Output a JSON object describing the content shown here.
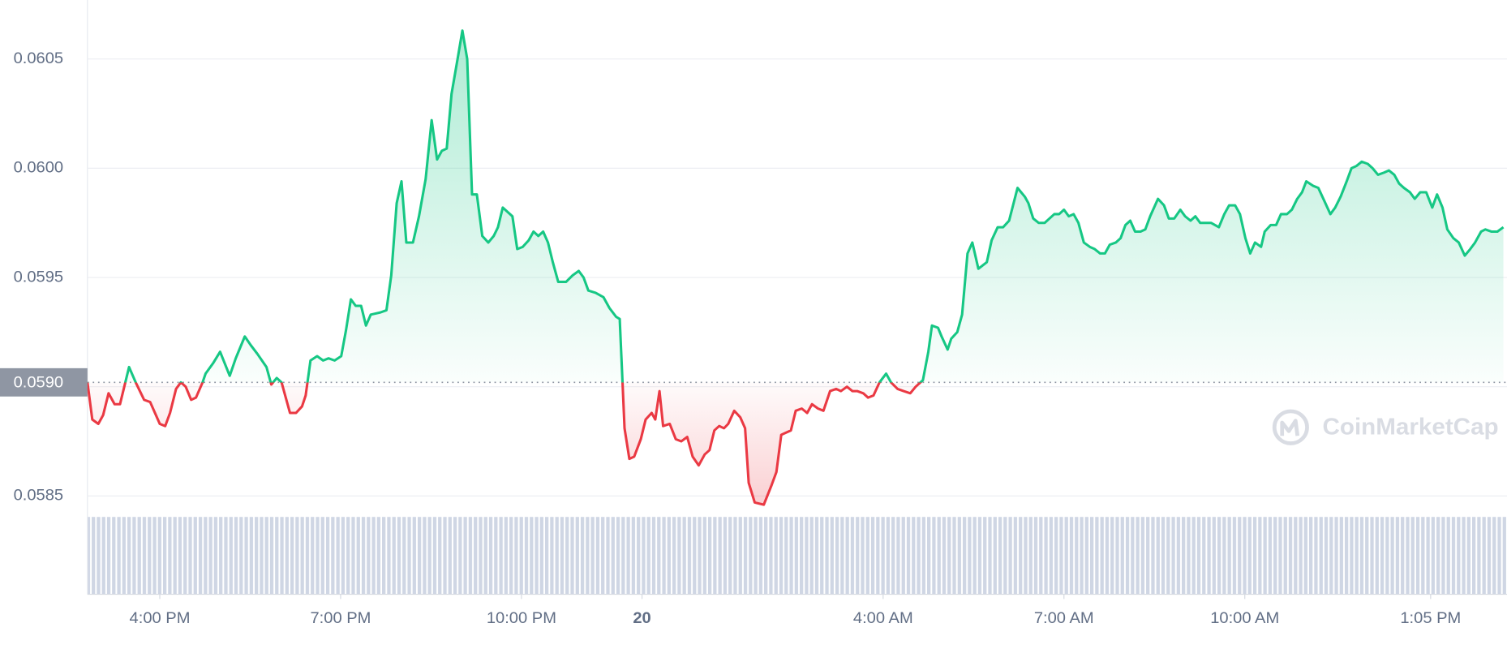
{
  "chart_data": {
    "type": "line",
    "watermark": "CoinMarketCap",
    "reference": {
      "value": 0.05902,
      "label": "0.0590"
    },
    "colors": {
      "up": "#16c784",
      "down": "#ea3943"
    },
    "grid": true,
    "xlim": [
      14.8,
      38.35
    ],
    "ylim": [
      0.05805,
      0.06077
    ],
    "xticks": [
      {
        "value": 16,
        "label": "4:00 PM"
      },
      {
        "value": 19,
        "label": "7:00 PM"
      },
      {
        "value": 22,
        "label": "10:00 PM"
      },
      {
        "value": 24,
        "label": "20"
      },
      {
        "value": 28,
        "label": "4:00 AM"
      },
      {
        "value": 31,
        "label": "7:00 AM"
      },
      {
        "value": 34,
        "label": "10:00 AM"
      },
      {
        "value": 37.083,
        "label": "1:05 PM"
      }
    ],
    "yticks": [
      0.0585,
      {
        "value": 0.059,
        "label": "0.0590"
      },
      0.0595,
      {
        "value": 0.06,
        "label": "0.0600"
      },
      0.0605
    ],
    "x": [
      14.8,
      14.88,
      14.98,
      15.06,
      15.15,
      15.25,
      15.34,
      15.49,
      15.6,
      15.74,
      15.84,
      16.0,
      16.09,
      16.17,
      16.27,
      16.35,
      16.43,
      16.52,
      16.6,
      16.71,
      16.76,
      16.89,
      17.0,
      17.16,
      17.26,
      17.41,
      17.51,
      17.62,
      17.77,
      17.85,
      17.94,
      18.02,
      18.16,
      18.26,
      18.36,
      18.42,
      18.5,
      18.61,
      18.71,
      18.8,
      18.9,
      19.01,
      19.09,
      19.17,
      19.25,
      19.34,
      19.42,
      19.5,
      19.66,
      19.76,
      19.84,
      19.93,
      20.01,
      20.09,
      20.2,
      20.3,
      20.41,
      20.51,
      20.6,
      20.68,
      20.76,
      20.84,
      20.94,
      21.02,
      21.1,
      21.18,
      21.26,
      21.35,
      21.45,
      21.54,
      21.61,
      21.69,
      21.77,
      21.85,
      21.93,
      22.02,
      22.12,
      22.2,
      22.28,
      22.36,
      22.44,
      22.52,
      22.61,
      22.74,
      22.85,
      22.95,
      23.03,
      23.11,
      23.23,
      23.36,
      23.46,
      23.57,
      23.63,
      23.68,
      23.71,
      23.79,
      23.87,
      23.98,
      24.06,
      24.16,
      24.22,
      24.29,
      24.35,
      24.46,
      24.56,
      24.65,
      24.75,
      24.84,
      24.94,
      25.04,
      25.12,
      25.2,
      25.28,
      25.36,
      25.43,
      25.53,
      25.63,
      25.71,
      25.77,
      25.87,
      26.02,
      26.15,
      26.23,
      26.31,
      26.39,
      26.47,
      26.55,
      26.65,
      26.74,
      26.82,
      26.92,
      27.01,
      27.12,
      27.22,
      27.3,
      27.4,
      27.49,
      27.57,
      27.67,
      27.75,
      27.84,
      27.94,
      28.05,
      28.13,
      28.24,
      28.34,
      28.45,
      28.54,
      28.66,
      28.75,
      28.81,
      28.91,
      28.97,
      29.07,
      29.13,
      29.23,
      29.31,
      29.4,
      29.48,
      29.58,
      29.72,
      29.8,
      29.9,
      29.99,
      30.09,
      30.23,
      30.35,
      30.41,
      30.49,
      30.58,
      30.68,
      30.76,
      30.84,
      30.92,
      31.0,
      31.08,
      31.16,
      31.24,
      31.33,
      31.43,
      31.51,
      31.6,
      31.68,
      31.76,
      31.86,
      31.94,
      32.02,
      32.1,
      32.18,
      32.27,
      32.35,
      32.43,
      32.56,
      32.66,
      32.74,
      32.83,
      32.93,
      33.01,
      33.1,
      33.18,
      33.26,
      33.36,
      33.44,
      33.57,
      33.66,
      33.74,
      33.84,
      33.92,
      34.01,
      34.09,
      34.17,
      34.27,
      34.33,
      34.43,
      34.52,
      34.6,
      34.7,
      34.78,
      34.87,
      34.95,
      35.02,
      35.13,
      35.22,
      35.32,
      35.42,
      35.5,
      35.59,
      35.69,
      35.77,
      35.85,
      35.94,
      36.04,
      36.12,
      36.21,
      36.31,
      36.39,
      36.48,
      36.56,
      36.64,
      36.74,
      36.82,
      36.91,
      37.01,
      37.11,
      37.19,
      37.28,
      37.36,
      37.46,
      37.55,
      37.65,
      37.74,
      37.82,
      37.92,
      37.99,
      38.09,
      38.19,
      38.29
    ],
    "values": [
      0.05902,
      0.05885,
      0.05883,
      0.05887,
      0.05897,
      0.05892,
      0.05892,
      0.05909,
      0.05902,
      0.05894,
      0.05893,
      0.05883,
      0.05882,
      0.05888,
      0.05899,
      0.05902,
      0.059,
      0.05894,
      0.05895,
      0.05902,
      0.05906,
      0.05911,
      0.05916,
      0.05905,
      0.05913,
      0.05923,
      0.05919,
      0.05915,
      0.05909,
      0.05901,
      0.05904,
      0.05902,
      0.05888,
      0.05888,
      0.05891,
      0.05896,
      0.05912,
      0.05914,
      0.05912,
      0.05913,
      0.05912,
      0.05914,
      0.05926,
      0.0594,
      0.05937,
      0.05937,
      0.05928,
      0.05933,
      0.05934,
      0.05935,
      0.05951,
      0.05984,
      0.05994,
      0.05966,
      0.05966,
      0.05978,
      0.05995,
      0.06022,
      0.06004,
      0.06008,
      0.06009,
      0.06034,
      0.0605,
      0.06063,
      0.0605,
      0.05988,
      0.05988,
      0.05969,
      0.05966,
      0.05969,
      0.05973,
      0.05982,
      0.0598,
      0.05978,
      0.05963,
      0.05964,
      0.05967,
      0.05971,
      0.05969,
      0.05971,
      0.05966,
      0.05957,
      0.05948,
      0.05948,
      0.05951,
      0.05953,
      0.0595,
      0.05944,
      0.05943,
      0.05941,
      0.05936,
      0.05932,
      0.05931,
      0.059,
      0.05881,
      0.05867,
      0.05868,
      0.05876,
      0.05885,
      0.05888,
      0.05885,
      0.05898,
      0.05882,
      0.05883,
      0.05876,
      0.05875,
      0.05877,
      0.05868,
      0.05864,
      0.05869,
      0.05871,
      0.0588,
      0.05882,
      0.05881,
      0.05883,
      0.05889,
      0.05886,
      0.05881,
      0.05856,
      0.05847,
      0.05846,
      0.05855,
      0.05861,
      0.05878,
      0.05879,
      0.0588,
      0.05889,
      0.0589,
      0.05888,
      0.05892,
      0.0589,
      0.05889,
      0.05898,
      0.05899,
      0.05898,
      0.059,
      0.05898,
      0.05898,
      0.05897,
      0.05895,
      0.05896,
      0.05902,
      0.05906,
      0.05902,
      0.05899,
      0.05898,
      0.05897,
      0.059,
      0.05903,
      0.05916,
      0.05928,
      0.05927,
      0.05923,
      0.05917,
      0.05922,
      0.05925,
      0.05933,
      0.05961,
      0.05966,
      0.05954,
      0.05957,
      0.05967,
      0.05973,
      0.05973,
      0.05976,
      0.05991,
      0.05987,
      0.05984,
      0.05977,
      0.05975,
      0.05975,
      0.05977,
      0.05979,
      0.05979,
      0.05981,
      0.05978,
      0.05979,
      0.05975,
      0.05966,
      0.05964,
      0.05963,
      0.05961,
      0.05961,
      0.05965,
      0.05966,
      0.05968,
      0.05974,
      0.05976,
      0.05971,
      0.05971,
      0.05972,
      0.05978,
      0.05986,
      0.05983,
      0.05977,
      0.05977,
      0.05981,
      0.05978,
      0.05976,
      0.05978,
      0.05975,
      0.05975,
      0.05975,
      0.05973,
      0.05979,
      0.05983,
      0.05983,
      0.05979,
      0.05968,
      0.05961,
      0.05966,
      0.05964,
      0.05971,
      0.05974,
      0.05974,
      0.05979,
      0.05979,
      0.05981,
      0.05986,
      0.05989,
      0.05994,
      0.05992,
      0.05991,
      0.05985,
      0.05979,
      0.05982,
      0.05987,
      0.05994,
      0.06,
      0.06001,
      0.06003,
      0.06002,
      0.06,
      0.05997,
      0.05998,
      0.05999,
      0.05997,
      0.05993,
      0.05991,
      0.05989,
      0.05986,
      0.05989,
      0.05989,
      0.05982,
      0.05988,
      0.05982,
      0.05972,
      0.05968,
      0.05966,
      0.0596,
      0.05963,
      0.05966,
      0.05971,
      0.05972,
      0.05971,
      0.05971,
      0.05973
    ]
  }
}
